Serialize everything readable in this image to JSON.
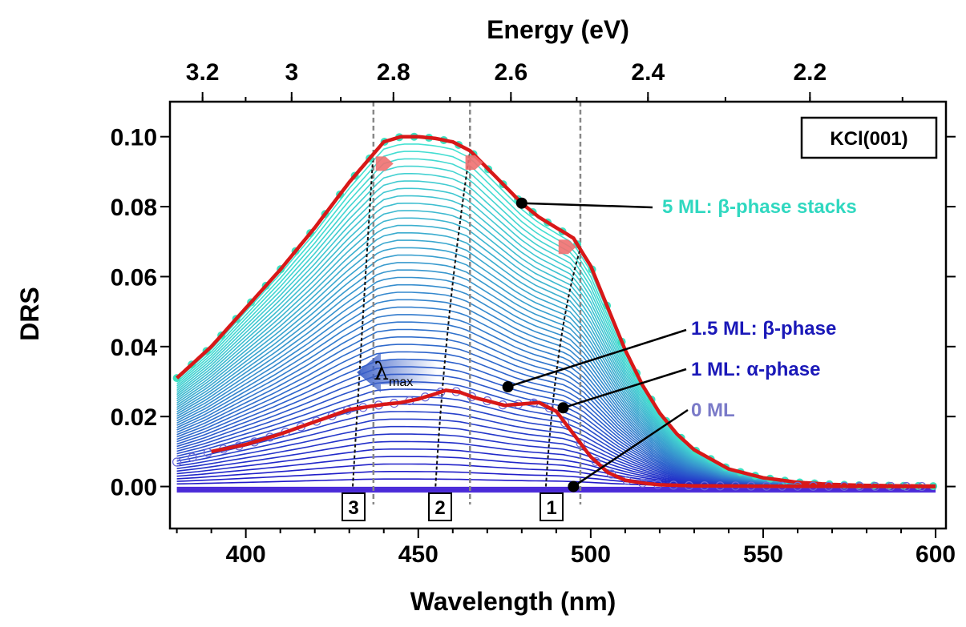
{
  "chart_data": {
    "type": "line",
    "xlabel": "Wavelength (nm)",
    "ylabel": "DRS",
    "top_xlabel": "Energy (eV)",
    "xlim": [
      378,
      603
    ],
    "ylim": [
      -0.012,
      0.11
    ],
    "x_ticks": [
      "400",
      "450",
      "500",
      "550",
      "600"
    ],
    "y_ticks": [
      "0.00",
      "0.02",
      "0.04",
      "0.06",
      "0.08",
      "0.10"
    ],
    "energy_ticks": [
      "3.2",
      "3",
      "2.8",
      "2.6",
      "2.4",
      "2.2"
    ],
    "energy_values": [
      3.2,
      3.0,
      2.8,
      2.6,
      2.4,
      2.2
    ],
    "grid": false,
    "box_label": "KCl(001)",
    "series": [
      {
        "name": "5 ML: β-phase stacks",
        "x": [
          380,
          390,
          400,
          410,
          420,
          430,
          440,
          445,
          450,
          455,
          460,
          465,
          470,
          475,
          480,
          485,
          490,
          495,
          500,
          505,
          510,
          515,
          520,
          525,
          530,
          540,
          550,
          560,
          570,
          580,
          590,
          600
        ],
        "y": [
          0.031,
          0.04,
          0.051,
          0.062,
          0.074,
          0.087,
          0.0985,
          0.1,
          0.1,
          0.0995,
          0.0985,
          0.096,
          0.091,
          0.086,
          0.081,
          0.077,
          0.074,
          0.071,
          0.063,
          0.051,
          0.039,
          0.029,
          0.021,
          0.015,
          0.0105,
          0.005,
          0.0025,
          0.0012,
          0.0006,
          0.0003,
          0.0002,
          0.0001
        ]
      },
      {
        "name": "1.5 ML: β-phase",
        "x": [
          390,
          400,
          410,
          420,
          430,
          440,
          445,
          450,
          455,
          458,
          462,
          466,
          470,
          475,
          480,
          485,
          490,
          495,
          500,
          505,
          510,
          515,
          520,
          530,
          550,
          600
        ],
        "y": [
          0.01,
          0.012,
          0.015,
          0.0185,
          0.022,
          0.0235,
          0.024,
          0.025,
          0.0265,
          0.0275,
          0.027,
          0.0255,
          0.0245,
          0.0232,
          0.0236,
          0.024,
          0.0215,
          0.015,
          0.0085,
          0.004,
          0.0018,
          0.001,
          0.0005,
          0.0002,
          0.0001,
          0.0
        ]
      }
    ],
    "guide_wavelengths": [
      437,
      465,
      497
    ],
    "peak_labels": [
      "3",
      "2",
      "1"
    ],
    "annotations": [
      {
        "text": "5 ML: β-phase stacks",
        "x": 480,
        "y": 0.081
      },
      {
        "text": "1.5 ML: β-phase",
        "x": 476,
        "y": 0.0285
      },
      {
        "text": "1 ML: α-phase",
        "x": 492,
        "y": 0.0225
      },
      {
        "text": "0 ML",
        "x": 495,
        "y": 0.0
      }
    ],
    "arrow_label": "λmax"
  }
}
